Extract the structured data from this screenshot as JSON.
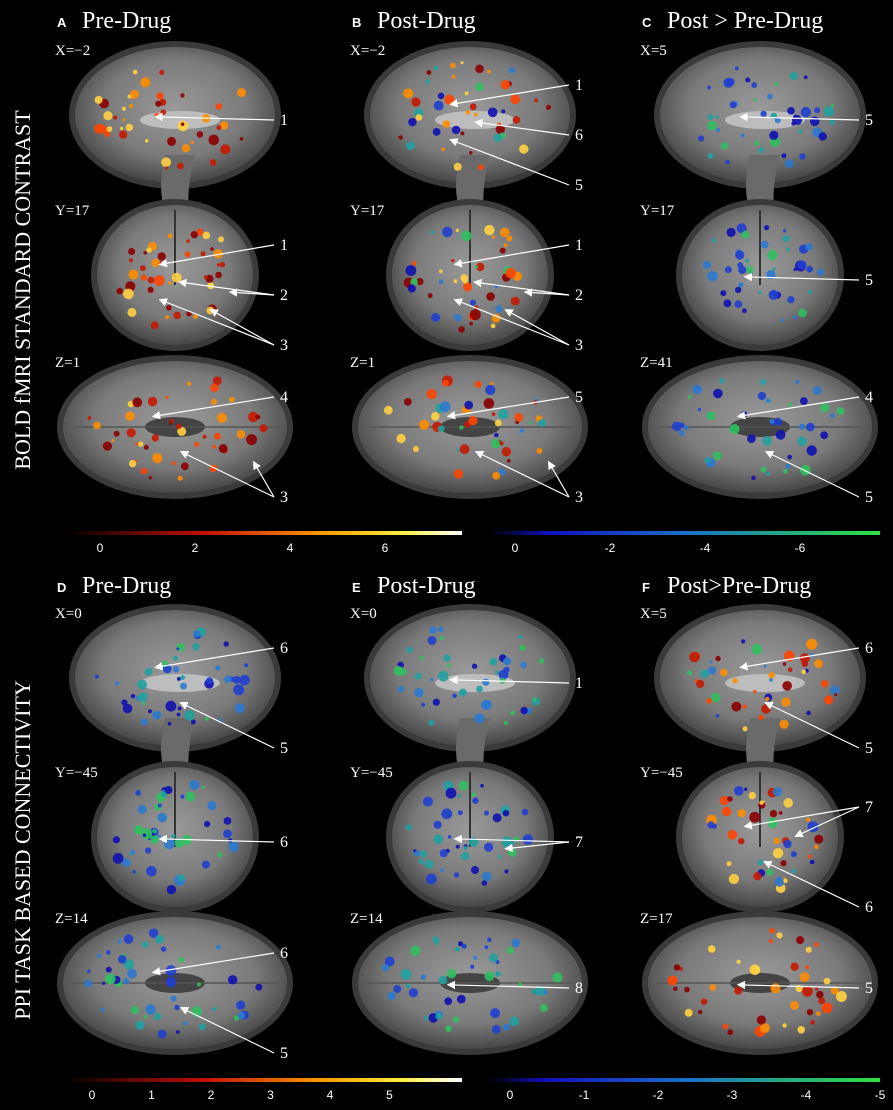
{
  "rows": [
    {
      "label": "BOLD fMRI STANDARD CONTRAST",
      "panels": [
        {
          "letter": "A",
          "title": "Pre-Drug",
          "slices": [
            {
              "coord": "X=−2",
              "callouts": [
                "1"
              ]
            },
            {
              "coord": "Y=17",
              "callouts": [
                "1",
                "2",
                "3"
              ]
            },
            {
              "coord": "Z=1",
              "callouts": [
                "4",
                "3"
              ]
            }
          ]
        },
        {
          "letter": "B",
          "title": "Post-Drug",
          "slices": [
            {
              "coord": "X=−2",
              "callouts": [
                "1",
                "6",
                "5"
              ]
            },
            {
              "coord": "Y=17",
              "callouts": [
                "1",
                "2",
                "3"
              ]
            },
            {
              "coord": "Z=1",
              "callouts": [
                "5",
                "3"
              ]
            }
          ]
        },
        {
          "letter": "C",
          "title": "Post > Pre-Drug",
          "slices": [
            {
              "coord": "X=5",
              "callouts": [
                "5"
              ]
            },
            {
              "coord": "Y=17",
              "callouts": [
                "5"
              ]
            },
            {
              "coord": "Z=41",
              "callouts": [
                "4",
                "5"
              ]
            }
          ]
        }
      ],
      "colorbars": [
        {
          "ticks": [
            "0",
            "2",
            "4",
            "6"
          ]
        },
        {
          "ticks": [
            "0",
            "-2",
            "-4",
            "-6"
          ]
        }
      ]
    },
    {
      "label": "PPI TASK BASED CONNECTIVITY",
      "panels": [
        {
          "letter": "D",
          "title": "Pre-Drug",
          "slices": [
            {
              "coord": "X=0",
              "callouts": [
                "6",
                "5"
              ]
            },
            {
              "coord": "Y=−45",
              "callouts": [
                "6"
              ]
            },
            {
              "coord": "Z=14",
              "callouts": [
                "6",
                "5"
              ]
            }
          ]
        },
        {
          "letter": "E",
          "title": "Post-Drug",
          "slices": [
            {
              "coord": "X=0",
              "callouts": [
                "1"
              ]
            },
            {
              "coord": "Y=−45",
              "callouts": [
                "7"
              ]
            },
            {
              "coord": "Z=14",
              "callouts": [
                "8"
              ]
            }
          ]
        },
        {
          "letter": "F",
          "title": "Post>Pre-Drug",
          "slices": [
            {
              "coord": "X=5",
              "callouts": [
                "6",
                "5"
              ]
            },
            {
              "coord": "Y=−45",
              "callouts": [
                "7",
                "6"
              ]
            },
            {
              "coord": "Z=17",
              "callouts": [
                "5"
              ]
            }
          ]
        }
      ],
      "colorbars": [
        {
          "ticks": [
            "0",
            "1",
            "2",
            "3",
            "4",
            "5"
          ]
        },
        {
          "ticks": [
            "0",
            "-1",
            "-2",
            "-3",
            "-4",
            "-5"
          ]
        }
      ]
    }
  ]
}
